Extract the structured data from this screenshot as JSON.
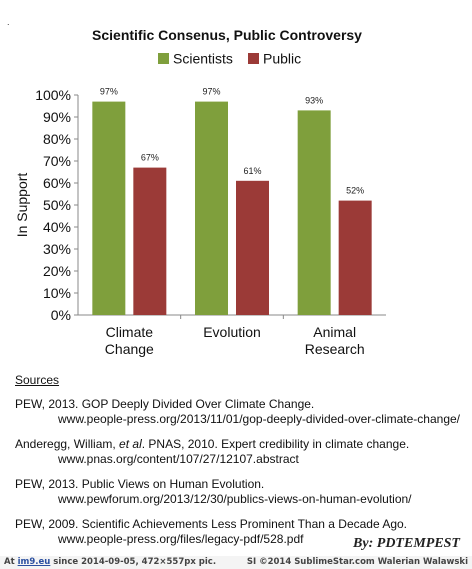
{
  "mark": ".",
  "chart_data": {
    "type": "bar",
    "title": "Scientific Consenus, Public Controversy",
    "ylabel": "In Support",
    "xlabel": "",
    "categories": [
      [
        "Climate",
        "Change"
      ],
      [
        "Evolution"
      ],
      [
        "Animal",
        "Research"
      ]
    ],
    "series": [
      {
        "name": "Scientists",
        "color": "#7f9f3c",
        "values": [
          97,
          97,
          93
        ],
        "labels": [
          "97%",
          "97%",
          "93%"
        ]
      },
      {
        "name": "Public",
        "color": "#9b3a37",
        "values": [
          67,
          61,
          52
        ],
        "labels": [
          "67%",
          "61%",
          "52%"
        ]
      }
    ],
    "yticks": [
      "0%",
      "10%",
      "20%",
      "30%",
      "40%",
      "50%",
      "60%",
      "70%",
      "80%",
      "90%",
      "100%"
    ],
    "ylim": [
      0,
      100
    ],
    "legend": "top",
    "grid": false
  },
  "sources": {
    "heading": "Sources",
    "entries": [
      {
        "line1": "PEW, 2013. GOP Deeply Divided Over Climate Change.",
        "line2": "www.people-press.org/2013/11/01/gop-deeply-divided-over-climate-change/"
      },
      {
        "line1a": "Anderegg, William, ",
        "line1b": "et al",
        "line1c": ". PNAS, 2010. Expert credibility in climate change.",
        "line2": "www.pnas.org/content/107/27/12107.abstract"
      },
      {
        "line1": "PEW, 2013. Public Views on Human Evolution.",
        "line2": "www.pewforum.org/2013/12/30/publics-views-on-human-evolution/"
      },
      {
        "line1": "PEW, 2009. Scientific Achievements Less Prominent Than a Decade Ago.",
        "line2": "www.people-press.org/files/legacy-pdf/528.pdf"
      }
    ]
  },
  "signature": "By: PDTEMPEST",
  "footer": {
    "left_prefix": "At ",
    "left_brand": "im9.eu",
    "left_suffix": " since 2014-09-05, 472×557px pic.",
    "right": "SI ©2014 SublimeStar.com Walerian Walawski"
  }
}
